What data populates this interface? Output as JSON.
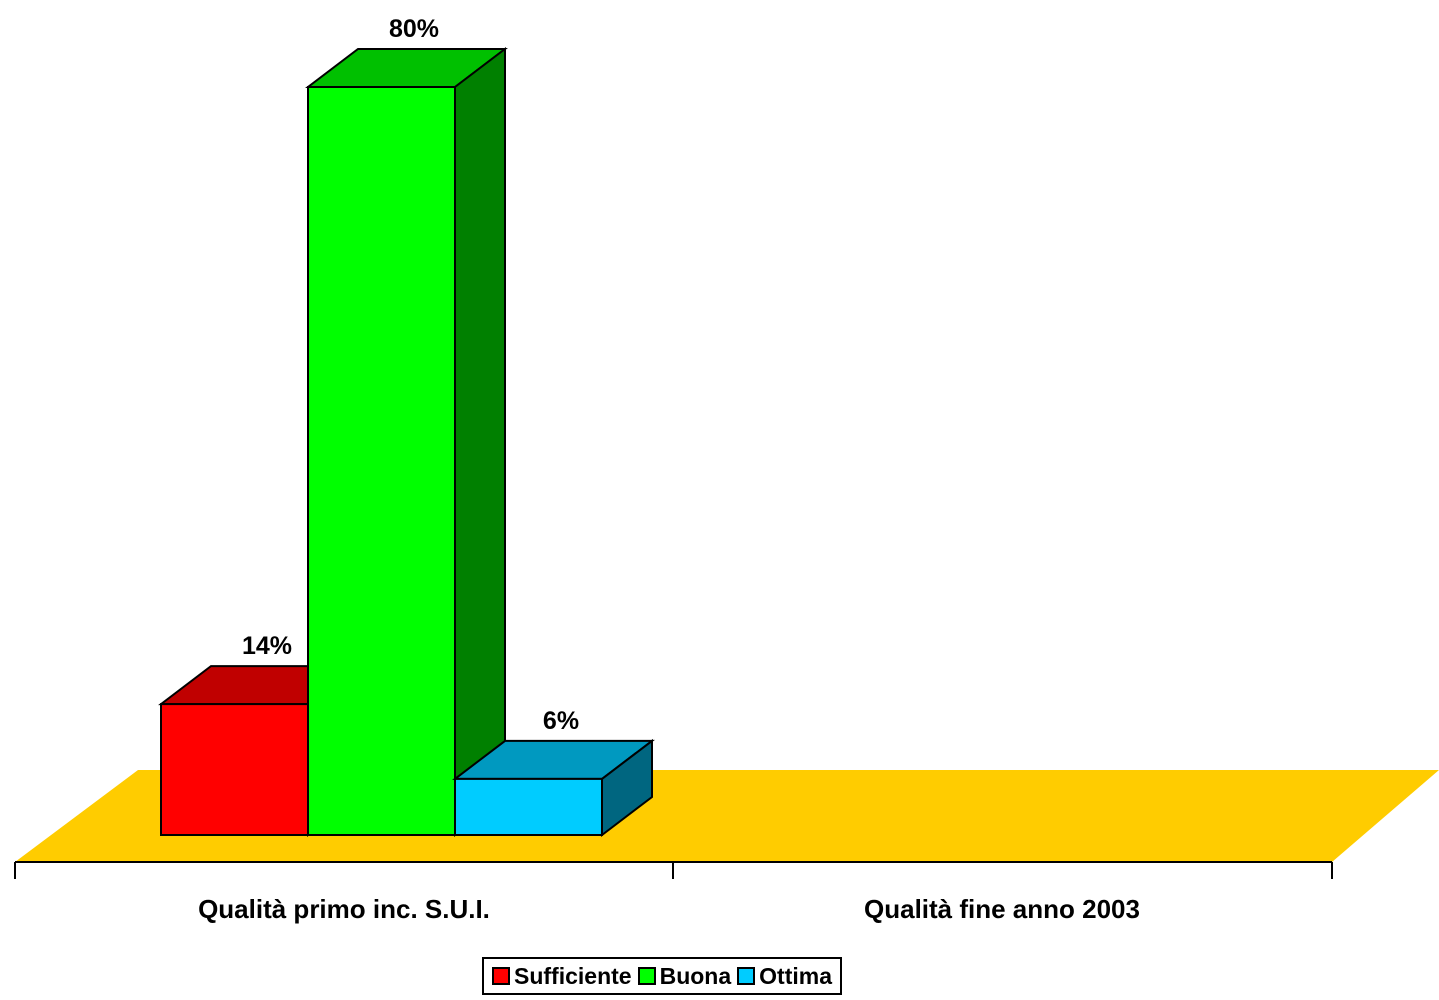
{
  "chart_data": {
    "type": "bar",
    "categories": [
      "Qualità primo inc. S.U.I.",
      "Qualità fine anno 2003"
    ],
    "series": [
      {
        "name": "Sufficiente",
        "values": [
          14,
          null
        ],
        "labels": [
          "14%",
          ""
        ],
        "color": "#ff0000",
        "top": "#c00000",
        "side": "#990000"
      },
      {
        "name": "Buona",
        "values": [
          80,
          null
        ],
        "labels": [
          "80%",
          ""
        ],
        "color": "#00ff00",
        "top": "#00c000",
        "side": "#008000"
      },
      {
        "name": "Ottima",
        "values": [
          6,
          null
        ],
        "labels": [
          "6%",
          ""
        ],
        "color": "#00ccff",
        "top": "#0099c0",
        "side": "#006680"
      }
    ],
    "ylim": [
      0,
      80
    ],
    "floor_color": "#ffcc00",
    "legend_position": "bottom",
    "grid": false
  }
}
